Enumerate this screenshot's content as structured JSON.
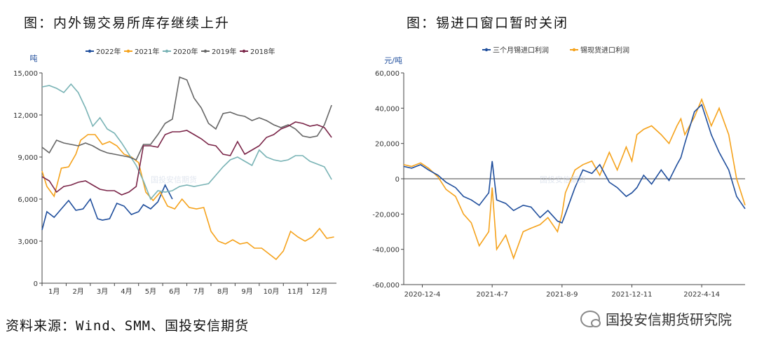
{
  "left_title": "图：内外锡交易所库存继续上升",
  "right_title": "图：锡进口窗口暂时关闭",
  "source": "资料来源：Wind、SMM、国投安信期货",
  "watermark": "国投安信期货",
  "brand_text": "国投安信期货研究院",
  "chart_data": [
    {
      "type": "line",
      "ylabel": "吨",
      "ylim": [
        0,
        15000
      ],
      "yticks": [
        0,
        3000,
        6000,
        9000,
        12000,
        15000
      ],
      "ytick_labels": [
        "0",
        "3,000",
        "6,000",
        "9,000",
        "12,000",
        "15,000"
      ],
      "categories": [
        "1月",
        "2月",
        "3月",
        "4月",
        "5月",
        "6月",
        "7月",
        "8月",
        "9月",
        "10月",
        "11月",
        "12月"
      ],
      "xlim": [
        0.5,
        12.7
      ],
      "legend_position": "top",
      "series": [
        {
          "name": "2022年",
          "color": "#1f4e9c",
          "x": [
            0.5,
            0.7,
            1.0,
            1.3,
            1.6,
            1.9,
            2.2,
            2.5,
            2.8,
            3.0,
            3.3,
            3.6,
            3.9,
            4.2,
            4.5,
            4.7,
            5.0,
            5.3,
            5.6,
            5.9
          ],
          "values": [
            3800,
            5100,
            4700,
            5300,
            5900,
            5200,
            5300,
            6000,
            4600,
            4500,
            4600,
            5700,
            5500,
            4900,
            5100,
            5600,
            5300,
            5800,
            7000,
            6000
          ]
        },
        {
          "name": "2021年",
          "color": "#f5a21b",
          "x": [
            0.5,
            0.7,
            1.0,
            1.3,
            1.6,
            1.9,
            2.1,
            2.4,
            2.7,
            3.0,
            3.3,
            3.6,
            3.9,
            4.2,
            4.5,
            4.8,
            5.1,
            5.4,
            5.7,
            6.0,
            6.3,
            6.6,
            6.9,
            7.2,
            7.5,
            7.8,
            8.1,
            8.4,
            8.7,
            9.0,
            9.3,
            9.6,
            9.9,
            10.2,
            10.5,
            10.8,
            11.1,
            11.4,
            11.7,
            12.0,
            12.3,
            12.6
          ],
          "values": [
            8000,
            6900,
            6200,
            8200,
            8300,
            9200,
            10200,
            10600,
            10600,
            9900,
            10100,
            9800,
            9200,
            9000,
            8600,
            6500,
            5900,
            6500,
            5500,
            5300,
            6000,
            5400,
            5300,
            5400,
            3700,
            3000,
            2800,
            3100,
            2800,
            2900,
            2500,
            2500,
            2100,
            1700,
            2300,
            3700,
            3300,
            3000,
            3300,
            3900,
            3200,
            3300
          ]
        },
        {
          "name": "2020年",
          "color": "#79b3b5",
          "x": [
            0.5,
            0.8,
            1.1,
            1.4,
            1.7,
            2.0,
            2.3,
            2.6,
            2.9,
            3.2,
            3.5,
            3.8,
            4.1,
            4.4,
            4.7,
            5.0,
            5.3,
            5.6,
            5.9,
            6.2,
            6.5,
            6.8,
            7.1,
            7.4,
            7.7,
            8.0,
            8.3,
            8.6,
            8.9,
            9.2,
            9.5,
            9.8,
            10.1,
            10.4,
            10.7,
            11.0,
            11.3,
            11.6,
            11.9,
            12.2,
            12.5
          ],
          "values": [
            14000,
            14100,
            13900,
            13600,
            14200,
            13600,
            12500,
            11200,
            11800,
            11000,
            10700,
            10000,
            9200,
            8400,
            7300,
            6000,
            6600,
            6500,
            6600,
            6900,
            7000,
            6900,
            7000,
            7100,
            7700,
            8300,
            8800,
            9000,
            8700,
            8400,
            9500,
            9000,
            8800,
            8700,
            8800,
            9100,
            9100,
            8700,
            8500,
            8300,
            7400
          ]
        },
        {
          "name": "2019年",
          "color": "#666666",
          "x": [
            0.5,
            0.8,
            1.1,
            1.4,
            1.7,
            2.0,
            2.3,
            2.6,
            2.9,
            3.2,
            3.5,
            3.8,
            4.1,
            4.4,
            4.7,
            5.0,
            5.3,
            5.6,
            5.9,
            6.2,
            6.5,
            6.8,
            7.1,
            7.4,
            7.7,
            8.0,
            8.3,
            8.6,
            8.9,
            9.2,
            9.5,
            9.8,
            10.1,
            10.4,
            10.7,
            11.0,
            11.3,
            11.6,
            11.9,
            12.2,
            12.5
          ],
          "values": [
            9700,
            9300,
            10200,
            10000,
            9900,
            9800,
            10000,
            9800,
            9500,
            9300,
            9200,
            9100,
            9000,
            8800,
            9900,
            9900,
            10600,
            11400,
            11700,
            14700,
            14500,
            13200,
            12500,
            11400,
            11000,
            12100,
            12200,
            12000,
            11900,
            11600,
            11800,
            11600,
            11300,
            11100,
            11300,
            11000,
            10500,
            10400,
            10500,
            11300,
            12700
          ]
        },
        {
          "name": "2018年",
          "color": "#7a2548",
          "x": [
            0.5,
            0.8,
            1.1,
            1.4,
            1.7,
            2.0,
            2.3,
            2.6,
            2.9,
            3.2,
            3.5,
            3.8,
            4.1,
            4.4,
            4.7,
            5.0,
            5.3,
            5.6,
            5.9,
            6.2,
            6.5,
            6.8,
            7.1,
            7.4,
            7.7,
            8.0,
            8.3,
            8.6,
            8.9,
            9.2,
            9.5,
            9.8,
            10.1,
            10.4,
            10.7,
            11.0,
            11.3,
            11.6,
            11.9,
            12.2,
            12.5
          ],
          "values": [
            7600,
            7300,
            6500,
            6900,
            7000,
            7200,
            7300,
            7000,
            6700,
            6600,
            6600,
            6300,
            6500,
            6900,
            9800,
            9800,
            9700,
            10600,
            10800,
            10800,
            10900,
            10600,
            10300,
            9900,
            9800,
            9200,
            9100,
            10100,
            9200,
            9500,
            9800,
            10400,
            10600,
            11000,
            11200,
            11500,
            11400,
            11200,
            11300,
            11100,
            10400
          ]
        }
      ]
    },
    {
      "type": "line",
      "ylabel": "元/吨",
      "ylim": [
        -60000,
        60000
      ],
      "yticks": [
        -60000,
        -40000,
        -20000,
        0,
        20000,
        40000,
        60000
      ],
      "ytick_labels": [
        "-60,000",
        "-40,000",
        "-20,000",
        "0",
        "20,000",
        "40,000",
        "60,000"
      ],
      "xticks": [
        "2020-12-4",
        "2021-4-7",
        "2021-8-9",
        "2021-12-11",
        "2022-4-14"
      ],
      "xlim": [
        "2020-11-01",
        "2022-06-30"
      ],
      "legend_position": "top",
      "series": [
        {
          "name": "三个月锡进口利润",
          "color": "#1f4e9c",
          "x": [
            "2020-11-01",
            "2020-11-15",
            "2020-12-01",
            "2020-12-15",
            "2021-01-01",
            "2021-01-15",
            "2021-02-01",
            "2021-02-15",
            "2021-03-01",
            "2021-03-15",
            "2021-04-01",
            "2021-04-07",
            "2021-04-15",
            "2021-05-01",
            "2021-05-15",
            "2021-06-01",
            "2021-06-15",
            "2021-07-01",
            "2021-07-15",
            "2021-08-01",
            "2021-08-09",
            "2021-08-15",
            "2021-09-01",
            "2021-09-15",
            "2021-10-01",
            "2021-10-15",
            "2021-11-01",
            "2021-11-15",
            "2021-12-01",
            "2021-12-11",
            "2021-12-20",
            "2022-01-01",
            "2022-01-15",
            "2022-02-01",
            "2022-02-15",
            "2022-03-01",
            "2022-03-08",
            "2022-03-15",
            "2022-04-01",
            "2022-04-14",
            "2022-05-01",
            "2022-05-15",
            "2022-06-01",
            "2022-06-15",
            "2022-06-30"
          ],
          "values": [
            7000,
            6000,
            8000,
            5000,
            2000,
            -2000,
            -5000,
            -10000,
            -12000,
            -15000,
            -8000,
            10000,
            -12000,
            -14000,
            -18000,
            -15000,
            -16000,
            -22000,
            -18000,
            -24000,
            -25000,
            -20000,
            -5000,
            5000,
            3000,
            8000,
            -2000,
            -5000,
            -10000,
            -8000,
            -5000,
            2000,
            -3000,
            5000,
            -1000,
            8000,
            12000,
            20000,
            38000,
            42000,
            25000,
            15000,
            5000,
            -10000,
            -17000
          ]
        },
        {
          "name": "锡现货进口利润",
          "color": "#f5a21b",
          "x": [
            "2020-11-01",
            "2020-11-15",
            "2020-12-01",
            "2020-12-15",
            "2021-01-01",
            "2021-01-15",
            "2021-02-01",
            "2021-02-15",
            "2021-03-01",
            "2021-03-15",
            "2021-04-01",
            "2021-04-07",
            "2021-04-15",
            "2021-05-01",
            "2021-05-15",
            "2021-06-01",
            "2021-06-15",
            "2021-07-01",
            "2021-07-15",
            "2021-08-01",
            "2021-08-09",
            "2021-08-15",
            "2021-09-01",
            "2021-09-15",
            "2021-10-01",
            "2021-10-15",
            "2021-11-01",
            "2021-11-15",
            "2021-12-01",
            "2021-12-11",
            "2021-12-20",
            "2022-01-01",
            "2022-01-15",
            "2022-02-01",
            "2022-02-15",
            "2022-03-01",
            "2022-03-08",
            "2022-03-15",
            "2022-04-01",
            "2022-04-14",
            "2022-05-01",
            "2022-05-15",
            "2022-06-01",
            "2022-06-15",
            "2022-06-30"
          ],
          "values": [
            8000,
            7000,
            9000,
            6000,
            1000,
            -6000,
            -10000,
            -20000,
            -25000,
            -38000,
            -30000,
            -5000,
            -40000,
            -32000,
            -45000,
            -30000,
            -28000,
            -26000,
            -22000,
            -30000,
            -20000,
            -8000,
            5000,
            8000,
            10000,
            2000,
            15000,
            5000,
            18000,
            10000,
            25000,
            28000,
            30000,
            25000,
            20000,
            30000,
            34000,
            25000,
            35000,
            45000,
            30000,
            40000,
            25000,
            0,
            -15000
          ]
        }
      ]
    }
  ]
}
